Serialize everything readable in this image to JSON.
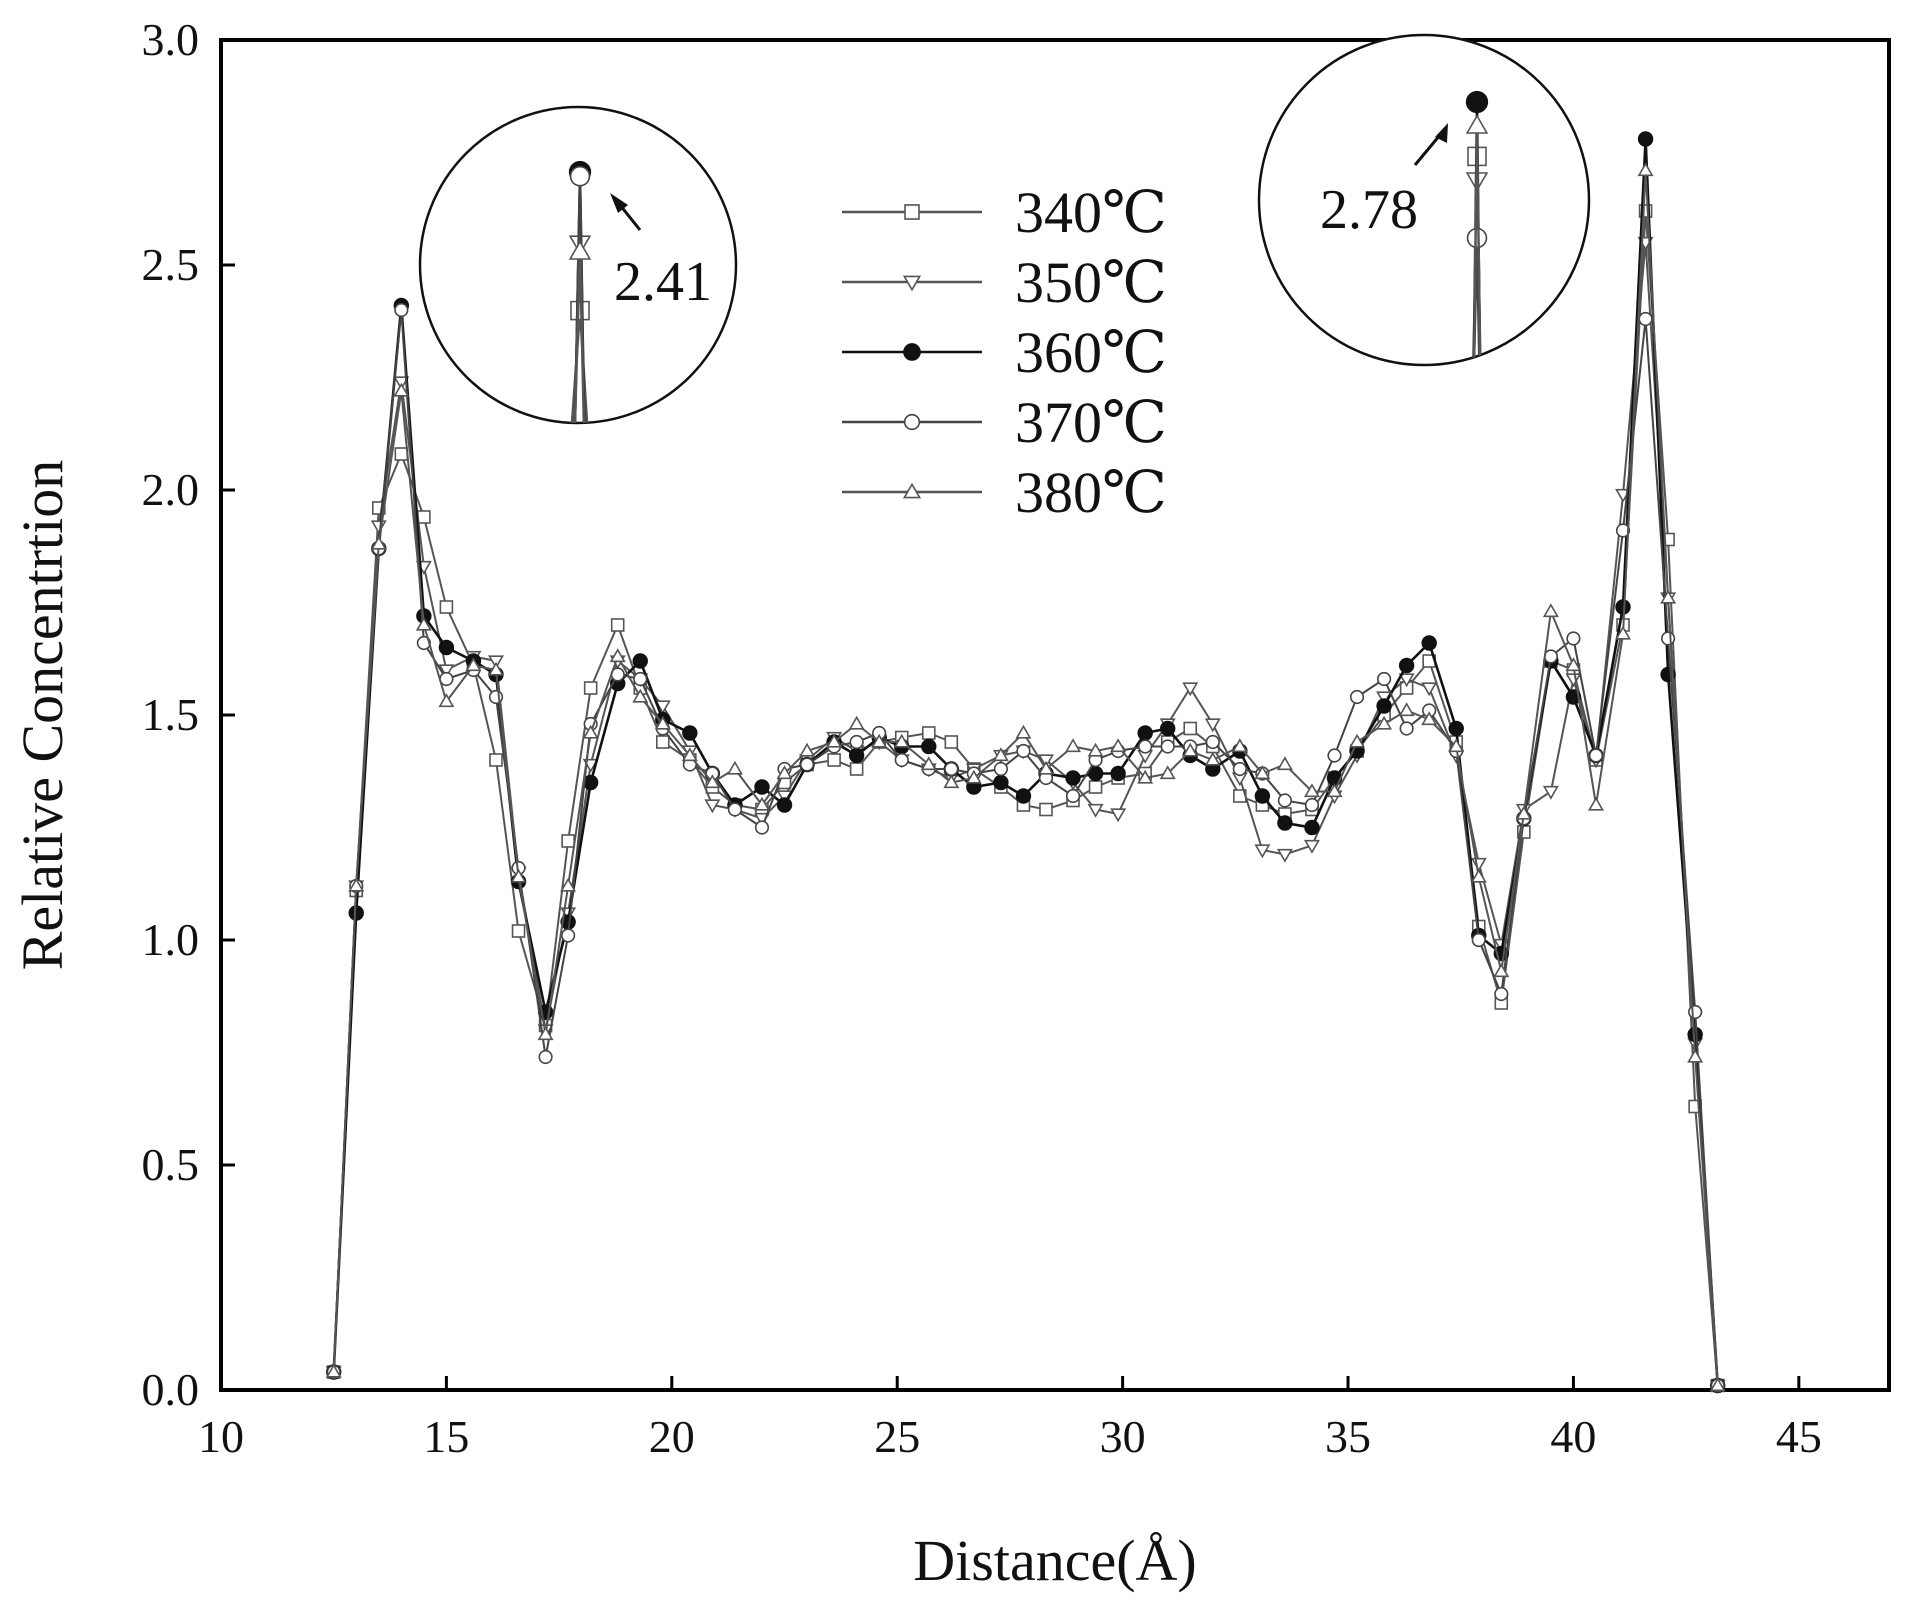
{
  "chart_data": {
    "type": "line",
    "title": "",
    "xlabel": "Distance(Å)",
    "ylabel": "Relative Concentrtion",
    "xlim": [
      10,
      47
    ],
    "ylim": [
      0,
      3
    ],
    "xticks": [
      10,
      15,
      20,
      25,
      30,
      35,
      40,
      45
    ],
    "xtick_labels": [
      "10",
      "15",
      "20",
      "25",
      "30",
      "35",
      "40",
      "45"
    ],
    "yticks": [
      0,
      0.5,
      1,
      1.5,
      2,
      2.5,
      3
    ],
    "ytick_labels": [
      "0.0",
      "0.5",
      "1.0",
      "1.5",
      "2.0",
      "2.5",
      "3.0"
    ],
    "grid": false,
    "legend_position": "top-center",
    "x": [
      12.5,
      13.0,
      13.5,
      14.0,
      14.5,
      15.0,
      15.6,
      16.1,
      16.6,
      17.2,
      17.7,
      18.2,
      18.8,
      19.3,
      19.8,
      20.4,
      20.9,
      21.4,
      22.0,
      22.5,
      23.0,
      23.6,
      24.1,
      24.6,
      25.1,
      25.7,
      26.2,
      26.7,
      27.3,
      27.8,
      28.3,
      28.9,
      29.4,
      29.9,
      30.5,
      31.0,
      31.5,
      32.0,
      32.6,
      33.1,
      33.6,
      34.2,
      34.7,
      35.2,
      35.8,
      36.3,
      36.8,
      37.4,
      37.9,
      38.4,
      38.9,
      39.5,
      40.0,
      40.5,
      41.1,
      41.6,
      42.1,
      42.7,
      43.2
    ],
    "series": [
      {
        "name": "340℃",
        "marker": "square",
        "values": [
          0.04,
          1.11,
          1.96,
          2.08,
          1.94,
          1.74,
          1.61,
          1.4,
          1.02,
          0.81,
          1.22,
          1.56,
          1.7,
          1.56,
          1.44,
          1.4,
          1.34,
          1.3,
          1.29,
          1.35,
          1.39,
          1.4,
          1.38,
          1.44,
          1.45,
          1.46,
          1.44,
          1.38,
          1.34,
          1.3,
          1.29,
          1.31,
          1.34,
          1.36,
          1.37,
          1.44,
          1.47,
          1.43,
          1.32,
          1.3,
          1.28,
          1.29,
          1.36,
          1.42,
          1.5,
          1.56,
          1.62,
          1.44,
          1.03,
          0.86,
          1.24,
          1.62,
          1.6,
          1.4,
          1.7,
          2.62,
          1.89,
          0.63,
          0.01
        ]
      },
      {
        "name": "350℃",
        "marker": "triangle-down",
        "values": [
          0.04,
          1.12,
          1.92,
          2.24,
          1.83,
          1.6,
          1.63,
          1.62,
          1.15,
          0.8,
          1.06,
          1.39,
          1.62,
          1.58,
          1.52,
          1.42,
          1.3,
          1.29,
          1.27,
          1.32,
          1.4,
          1.45,
          1.42,
          1.44,
          1.4,
          1.38,
          1.36,
          1.38,
          1.41,
          1.42,
          1.4,
          1.35,
          1.29,
          1.28,
          1.41,
          1.48,
          1.56,
          1.48,
          1.36,
          1.2,
          1.19,
          1.21,
          1.32,
          1.41,
          1.54,
          1.58,
          1.56,
          1.41,
          1.17,
          0.99,
          1.29,
          1.33,
          1.58,
          1.4,
          1.99,
          2.55,
          1.76,
          0.77,
          0.01
        ]
      },
      {
        "name": "360℃",
        "marker": "filled-circle",
        "values": [
          0.04,
          1.06,
          1.87,
          2.41,
          1.72,
          1.65,
          1.62,
          1.59,
          1.13,
          0.84,
          1.04,
          1.35,
          1.57,
          1.62,
          1.49,
          1.46,
          1.37,
          1.3,
          1.34,
          1.3,
          1.39,
          1.44,
          1.41,
          1.45,
          1.43,
          1.43,
          1.38,
          1.34,
          1.35,
          1.32,
          1.37,
          1.36,
          1.37,
          1.37,
          1.46,
          1.47,
          1.41,
          1.38,
          1.42,
          1.32,
          1.26,
          1.25,
          1.36,
          1.42,
          1.52,
          1.61,
          1.66,
          1.47,
          1.01,
          0.97,
          1.27,
          1.62,
          1.54,
          1.41,
          1.74,
          2.78,
          1.59,
          0.79,
          0.01
        ]
      },
      {
        "name": "370℃",
        "marker": "open-circle",
        "values": [
          0.04,
          1.12,
          1.87,
          2.4,
          1.66,
          1.58,
          1.6,
          1.54,
          1.16,
          0.74,
          1.01,
          1.48,
          1.59,
          1.58,
          1.47,
          1.39,
          1.37,
          1.29,
          1.25,
          1.38,
          1.39,
          1.43,
          1.44,
          1.46,
          1.4,
          1.38,
          1.38,
          1.37,
          1.38,
          1.42,
          1.36,
          1.32,
          1.4,
          1.42,
          1.43,
          1.43,
          1.43,
          1.44,
          1.38,
          1.37,
          1.31,
          1.3,
          1.41,
          1.54,
          1.58,
          1.47,
          1.51,
          1.42,
          1.0,
          0.88,
          1.27,
          1.63,
          1.67,
          1.41,
          1.91,
          2.38,
          1.67,
          0.84,
          0.01
        ]
      },
      {
        "name": "380℃",
        "marker": "triangle-up",
        "values": [
          0.04,
          1.12,
          1.88,
          2.22,
          1.7,
          1.53,
          1.61,
          1.6,
          1.14,
          0.79,
          1.12,
          1.46,
          1.63,
          1.54,
          1.48,
          1.41,
          1.35,
          1.38,
          1.3,
          1.37,
          1.42,
          1.44,
          1.48,
          1.44,
          1.44,
          1.39,
          1.35,
          1.36,
          1.41,
          1.46,
          1.38,
          1.43,
          1.42,
          1.43,
          1.36,
          1.37,
          1.42,
          1.4,
          1.43,
          1.37,
          1.39,
          1.33,
          1.33,
          1.44,
          1.48,
          1.51,
          1.49,
          1.43,
          1.14,
          0.93,
          1.28,
          1.73,
          1.61,
          1.3,
          1.68,
          2.71,
          1.76,
          0.74,
          0.01
        ]
      }
    ],
    "annotations": [
      {
        "text": "2.41",
        "x": 14.0,
        "y": 2.41,
        "style": "magnified-peak-callout"
      },
      {
        "text": "2.78",
        "x": 41.6,
        "y": 2.78,
        "style": "magnified-peak-callout"
      }
    ]
  }
}
